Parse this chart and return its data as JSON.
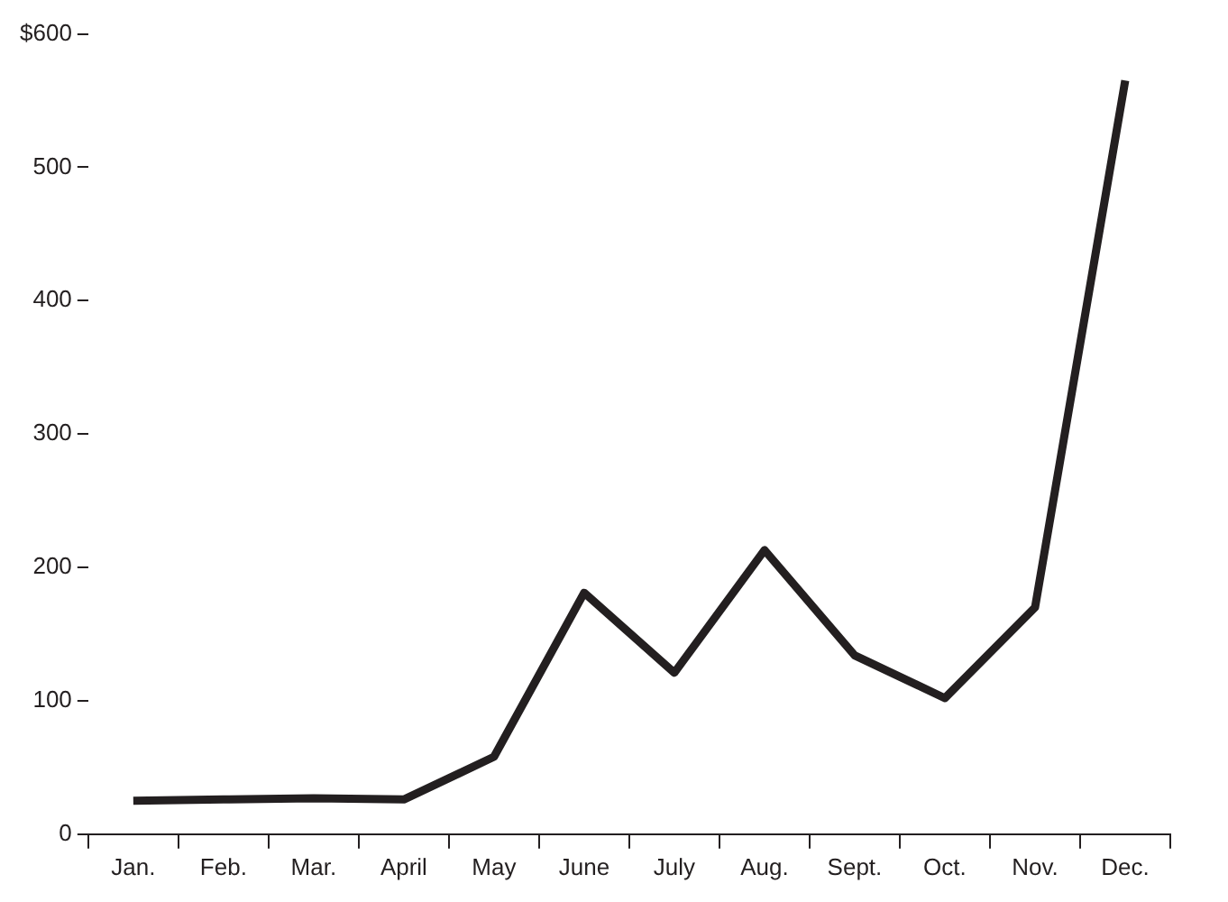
{
  "chart_data": {
    "type": "line",
    "categories": [
      "Jan.",
      "Feb.",
      "Mar.",
      "April",
      "May",
      "June",
      "July",
      "Aug.",
      "Sept.",
      "Oct.",
      "Nov.",
      "Dec."
    ],
    "series": [
      {
        "color": "#231f20",
        "values": [
          25,
          26,
          27,
          26,
          58,
          181,
          121,
          213,
          134,
          102,
          170,
          565
        ]
      }
    ],
    "ylim": [
      0,
      600
    ],
    "yticks": [
      0,
      100,
      200,
      300,
      400,
      500,
      {
        "value": 600,
        "label": "$600"
      }
    ],
    "grid": false,
    "legend": false,
    "marker": "none",
    "line_style": "solid"
  }
}
